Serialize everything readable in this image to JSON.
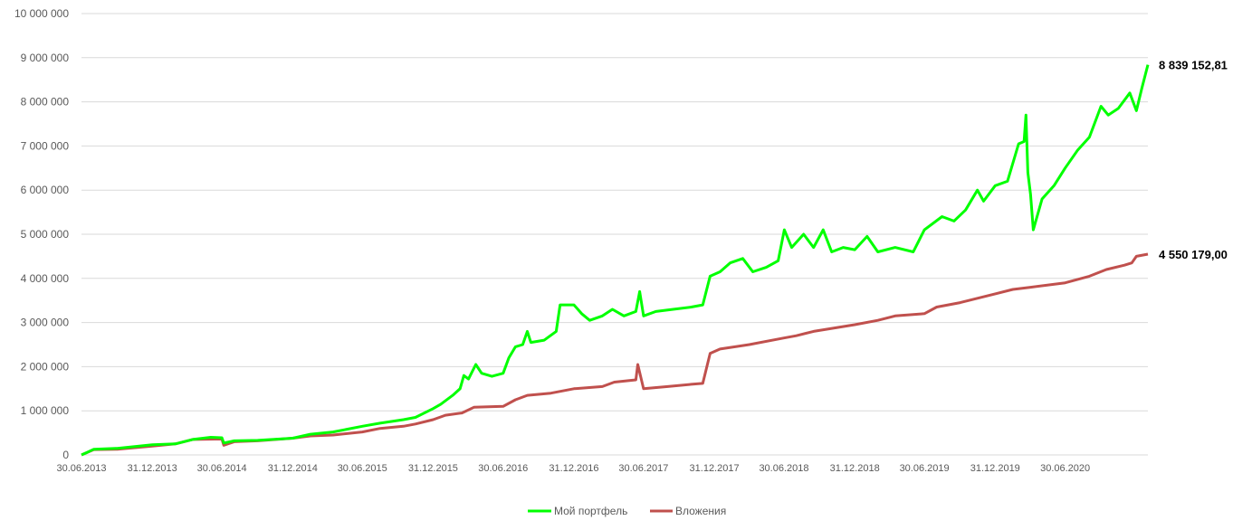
{
  "chart_data": {
    "type": "line",
    "title": "",
    "xlabel": "",
    "ylabel": "",
    "ylim": [
      0,
      10000000
    ],
    "grid": true,
    "legend_position": "bottom",
    "y_ticks": [
      "0",
      "1 000 000",
      "2 000 000",
      "3 000 000",
      "4 000 000",
      "5 000 000",
      "6 000 000",
      "7 000 000",
      "8 000 000",
      "9 000 000",
      "10 000 000"
    ],
    "y_tick_values": [
      0,
      1000000,
      2000000,
      3000000,
      4000000,
      5000000,
      6000000,
      7000000,
      8000000,
      9000000,
      10000000
    ],
    "x_ticks": [
      "30.06.2013",
      "31.12.2013",
      "30.06.2014",
      "31.12.2014",
      "30.06.2015",
      "31.12.2015",
      "30.06.2016",
      "31.12.2016",
      "30.06.2017",
      "31.12.2017",
      "30.06.2018",
      "31.12.2018",
      "30.06.2019",
      "31.12.2019",
      "30.06.2020"
    ],
    "series": [
      {
        "name": "Мой портфель",
        "color": "#00ff00",
        "end_label": "8 839 152,81",
        "points": [
          [
            "2013-06-30",
            0
          ],
          [
            "2013-07-15",
            60000
          ],
          [
            "2013-08-01",
            130000
          ],
          [
            "2013-10-01",
            150000
          ],
          [
            "2013-12-31",
            230000
          ],
          [
            "2014-03-01",
            250000
          ],
          [
            "2014-04-15",
            350000
          ],
          [
            "2014-06-01",
            400000
          ],
          [
            "2014-06-30",
            390000
          ],
          [
            "2014-07-05",
            270000
          ],
          [
            "2014-08-01",
            320000
          ],
          [
            "2014-10-01",
            330000
          ],
          [
            "2014-12-31",
            380000
          ],
          [
            "2015-02-15",
            470000
          ],
          [
            "2015-04-15",
            520000
          ],
          [
            "2015-06-30",
            650000
          ],
          [
            "2015-08-15",
            720000
          ],
          [
            "2015-10-15",
            800000
          ],
          [
            "2015-11-15",
            850000
          ],
          [
            "2015-12-31",
            1050000
          ],
          [
            "2016-01-20",
            1150000
          ],
          [
            "2016-02-20",
            1350000
          ],
          [
            "2016-03-10",
            1500000
          ],
          [
            "2016-03-20",
            1800000
          ],
          [
            "2016-04-01",
            1720000
          ],
          [
            "2016-04-20",
            2050000
          ],
          [
            "2016-05-05",
            1850000
          ],
          [
            "2016-06-01",
            1780000
          ],
          [
            "2016-06-30",
            1850000
          ],
          [
            "2016-07-15",
            2200000
          ],
          [
            "2016-08-01",
            2450000
          ],
          [
            "2016-08-20",
            2500000
          ],
          [
            "2016-09-01",
            2800000
          ],
          [
            "2016-09-10",
            2550000
          ],
          [
            "2016-10-15",
            2600000
          ],
          [
            "2016-11-15",
            2800000
          ],
          [
            "2016-11-25",
            3400000
          ],
          [
            "2016-12-31",
            3400000
          ],
          [
            "2017-01-20",
            3200000
          ],
          [
            "2017-02-10",
            3050000
          ],
          [
            "2017-03-15",
            3150000
          ],
          [
            "2017-04-10",
            3300000
          ],
          [
            "2017-05-10",
            3150000
          ],
          [
            "2017-06-10",
            3250000
          ],
          [
            "2017-06-20",
            3700000
          ],
          [
            "2017-06-30",
            3150000
          ],
          [
            "2017-08-01",
            3250000
          ],
          [
            "2017-09-15",
            3300000
          ],
          [
            "2017-11-01",
            3350000
          ],
          [
            "2017-12-01",
            3400000
          ],
          [
            "2017-12-20",
            4050000
          ],
          [
            "2018-01-15",
            4150000
          ],
          [
            "2018-02-10",
            4350000
          ],
          [
            "2018-03-15",
            4450000
          ],
          [
            "2018-04-10",
            4150000
          ],
          [
            "2018-05-15",
            4250000
          ],
          [
            "2018-06-15",
            4400000
          ],
          [
            "2018-07-01",
            5100000
          ],
          [
            "2018-07-20",
            4700000
          ],
          [
            "2018-08-20",
            5000000
          ],
          [
            "2018-09-15",
            4700000
          ],
          [
            "2018-10-10",
            5100000
          ],
          [
            "2018-11-01",
            4600000
          ],
          [
            "2018-12-01",
            4700000
          ],
          [
            "2018-12-31",
            4650000
          ],
          [
            "2019-02-01",
            4950000
          ],
          [
            "2019-03-01",
            4600000
          ],
          [
            "2019-04-15",
            4700000
          ],
          [
            "2019-06-01",
            4600000
          ],
          [
            "2019-06-30",
            5100000
          ],
          [
            "2019-08-15",
            5400000
          ],
          [
            "2019-09-15",
            5300000
          ],
          [
            "2019-10-15",
            5550000
          ],
          [
            "2019-11-15",
            6000000
          ],
          [
            "2019-12-01",
            5750000
          ],
          [
            "2019-12-31",
            6100000
          ],
          [
            "2020-02-01",
            6200000
          ],
          [
            "2020-03-01",
            7050000
          ],
          [
            "2020-03-15",
            7100000
          ],
          [
            "2020-03-20",
            7700000
          ],
          [
            "2020-03-25",
            6400000
          ],
          [
            "2020-04-01",
            5900000
          ],
          [
            "2020-04-08",
            5100000
          ],
          [
            "2020-05-01",
            5800000
          ],
          [
            "2020-06-01",
            6100000
          ],
          [
            "2020-06-30",
            6500000
          ],
          [
            "2020-08-01",
            6900000
          ],
          [
            "2020-09-01",
            7200000
          ],
          [
            "2020-10-01",
            7900000
          ],
          [
            "2020-10-20",
            7700000
          ],
          [
            "2020-11-15",
            7850000
          ],
          [
            "2020-12-15",
            8200000
          ],
          [
            "2021-01-01",
            7800000
          ],
          [
            "2021-01-15",
            8300000
          ],
          [
            "2021-01-31",
            8839152.81
          ]
        ]
      },
      {
        "name": "Вложения",
        "color": "#c0504d",
        "end_label": "4 550 179,00",
        "points": [
          [
            "2013-06-30",
            0
          ],
          [
            "2013-08-01",
            120000
          ],
          [
            "2013-10-01",
            130000
          ],
          [
            "2013-12-31",
            200000
          ],
          [
            "2014-03-01",
            250000
          ],
          [
            "2014-04-15",
            350000
          ],
          [
            "2014-06-30",
            360000
          ],
          [
            "2014-07-05",
            220000
          ],
          [
            "2014-08-01",
            300000
          ],
          [
            "2014-10-01",
            320000
          ],
          [
            "2014-12-31",
            380000
          ],
          [
            "2015-02-15",
            430000
          ],
          [
            "2015-04-15",
            450000
          ],
          [
            "2015-06-30",
            520000
          ],
          [
            "2015-08-15",
            600000
          ],
          [
            "2015-10-15",
            650000
          ],
          [
            "2015-11-15",
            700000
          ],
          [
            "2015-12-31",
            800000
          ],
          [
            "2016-02-01",
            900000
          ],
          [
            "2016-03-15",
            950000
          ],
          [
            "2016-04-15",
            1080000
          ],
          [
            "2016-06-30",
            1100000
          ],
          [
            "2016-08-01",
            1250000
          ],
          [
            "2016-09-01",
            1350000
          ],
          [
            "2016-11-01",
            1400000
          ],
          [
            "2016-12-31",
            1500000
          ],
          [
            "2017-03-15",
            1550000
          ],
          [
            "2017-04-15",
            1650000
          ],
          [
            "2017-06-10",
            1700000
          ],
          [
            "2017-06-15",
            2050000
          ],
          [
            "2017-06-30",
            1500000
          ],
          [
            "2017-09-01",
            1550000
          ],
          [
            "2017-11-01",
            1600000
          ],
          [
            "2017-12-01",
            1620000
          ],
          [
            "2017-12-20",
            2300000
          ],
          [
            "2018-01-15",
            2400000
          ],
          [
            "2018-04-01",
            2500000
          ],
          [
            "2018-06-30",
            2650000
          ],
          [
            "2018-08-01",
            2700000
          ],
          [
            "2018-09-15",
            2800000
          ],
          [
            "2018-12-31",
            2950000
          ],
          [
            "2019-03-01",
            3050000
          ],
          [
            "2019-04-15",
            3150000
          ],
          [
            "2019-06-30",
            3200000
          ],
          [
            "2019-08-01",
            3350000
          ],
          [
            "2019-10-01",
            3450000
          ],
          [
            "2019-12-31",
            3650000
          ],
          [
            "2020-02-15",
            3750000
          ],
          [
            "2020-04-01",
            3800000
          ],
          [
            "2020-06-30",
            3900000
          ],
          [
            "2020-09-01",
            4050000
          ],
          [
            "2020-10-15",
            4200000
          ],
          [
            "2020-12-01",
            4300000
          ],
          [
            "2020-12-20",
            4350000
          ],
          [
            "2021-01-01",
            4500000
          ],
          [
            "2021-01-31",
            4550179
          ]
        ]
      }
    ]
  }
}
